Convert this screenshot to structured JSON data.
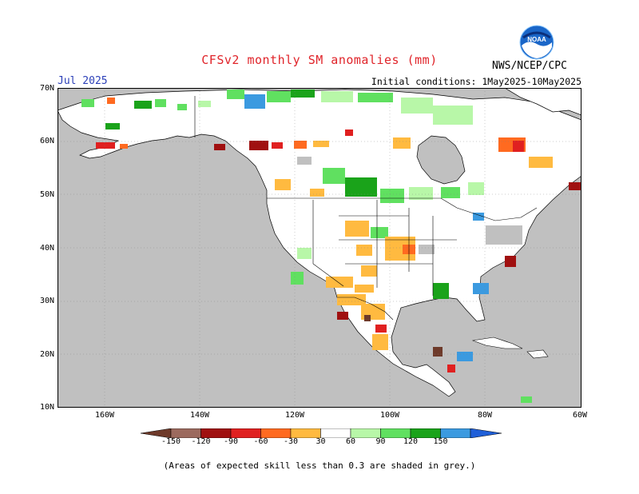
{
  "title": "CFSv2 monthly SM anomalies (mm)",
  "month": "Jul 2025",
  "initial_conditions": "Initial conditions: 1May2025-10May2025",
  "organization": "NWS/NCEP/CPC",
  "logo_text": "NOAA",
  "map": {
    "lat_labels": [
      "70N",
      "60N",
      "50N",
      "40N",
      "30N",
      "20N",
      "10N"
    ],
    "lon_labels": [
      "160W",
      "140W",
      "120W",
      "100W",
      "80W",
      "60W"
    ],
    "colors": {
      "ocean": "#c0c0c0",
      "land": "#ffffff",
      "low_skill": "#c0c0c0",
      "border": "#000000"
    }
  },
  "colorbar": {
    "labels": [
      "-150",
      "-120",
      "-90",
      "-60",
      "-30",
      "30",
      "60",
      "90",
      "120",
      "150"
    ],
    "colors": [
      "#6e3a2a",
      "#9c6a5e",
      "#a01010",
      "#e02020",
      "#ff6a20",
      "#ffba40",
      "#ffffff",
      "#b8f7a8",
      "#60e060",
      "#1aa31a",
      "#3b9ae0",
      "#1f5fd8"
    ]
  },
  "footnote": "(Areas of expected skill less than 0.3 are shaded in grey.)"
}
